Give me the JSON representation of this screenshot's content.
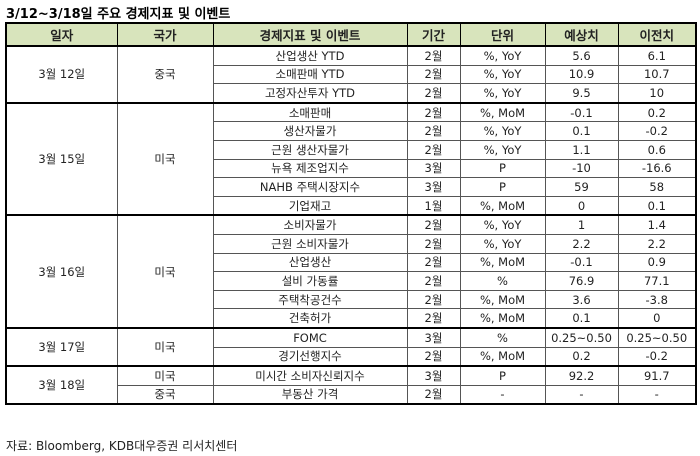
{
  "title": "3/12~3/18일 주요 경제지표 및 이벤트",
  "headers": [
    "일자",
    "국가",
    "경제지표 및 이벤트",
    "기간",
    "단위",
    "예상치",
    "이전치"
  ],
  "rows": [
    [
      "3월 12일",
      "중국",
      "산업생산 YTD",
      "2월",
      "%, YoY",
      "5.6",
      "6.1"
    ],
    [
      "",
      "",
      "소매판매 YTD",
      "2월",
      "%, YoY",
      "10.9",
      "10.7"
    ],
    [
      "",
      "",
      "고정자산투자 YTD",
      "2월",
      "%, YoY",
      "9.5",
      "10"
    ],
    [
      "3월 15일",
      "미국",
      "소매판매",
      "2월",
      "%, MoM",
      "-0.1",
      "0.2"
    ],
    [
      "",
      "",
      "생산자물가",
      "2월",
      "%, YoY",
      "0.1",
      "-0.2"
    ],
    [
      "",
      "",
      "근원 생산자물가",
      "2월",
      "%, YoY",
      "1.1",
      "0.6"
    ],
    [
      "",
      "",
      "뉴욕 제조업지수",
      "3월",
      "P",
      "-10",
      "-16.6"
    ],
    [
      "",
      "",
      "NAHB 주택시장지수",
      "3월",
      "P",
      "59",
      "58"
    ],
    [
      "",
      "",
      "기업재고",
      "1월",
      "%, MoM",
      "0",
      "0.1"
    ],
    [
      "3월 16일",
      "미국",
      "소비자물가",
      "2월",
      "%, YoY",
      "1",
      "1.4"
    ],
    [
      "",
      "",
      "근원 소비자물가",
      "2월",
      "%, YoY",
      "2.2",
      "2.2"
    ],
    [
      "",
      "",
      "산업생산",
      "2월",
      "%, MoM",
      "-0.1",
      "0.9"
    ],
    [
      "",
      "",
      "설비 가동률",
      "2월",
      "%",
      "76.9",
      "77.1"
    ],
    [
      "",
      "",
      "주택착공건수",
      "2월",
      "%, MoM",
      "3.6",
      "-3.8"
    ],
    [
      "",
      "",
      "건축허가",
      "2월",
      "%, MoM",
      "0.1",
      "0"
    ],
    [
      "3월 17일",
      "미국",
      "FOMC",
      "3월",
      "%",
      "0.25~0.50",
      "0.25~0.50"
    ],
    [
      "",
      "",
      "경기선행지수",
      "2월",
      "%, MoM",
      "0.2",
      "-0.2"
    ],
    [
      "3월 18일",
      "미국",
      "미시간 소비자신뢰지수",
      "3월",
      "P",
      "92.2",
      "91.7"
    ],
    [
      "",
      "중국",
      "부동산 가격",
      "2월",
      "-",
      "-",
      "-"
    ]
  ],
  "source": "자료: Bloomberg, KDB대우증권 리서치센터"
}
